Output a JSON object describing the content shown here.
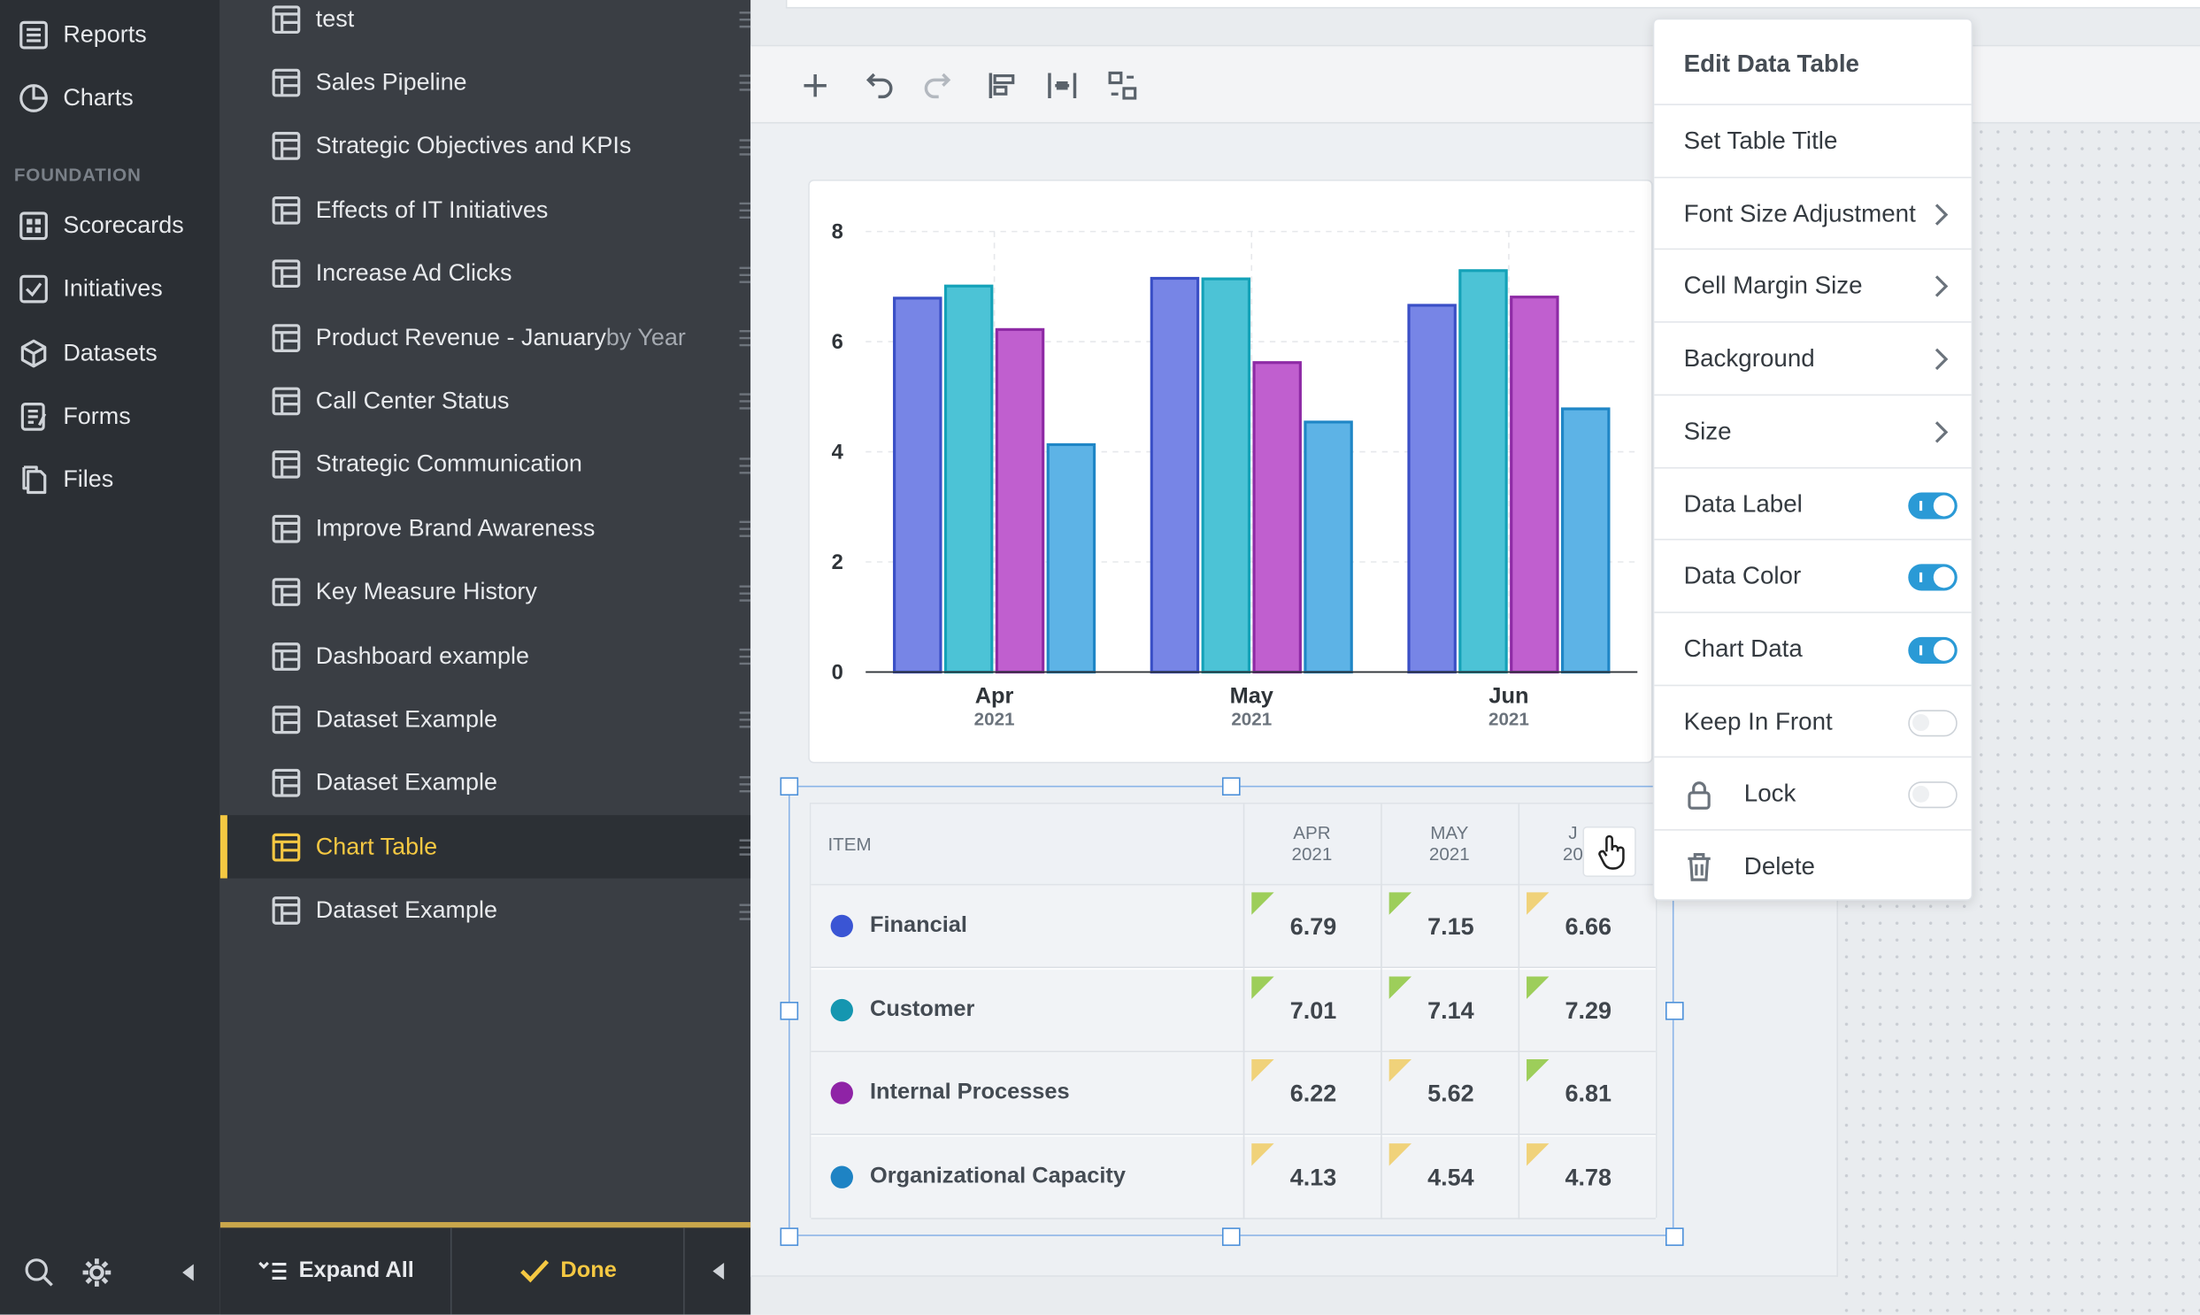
{
  "nav": {
    "items": [
      {
        "label": "Reports",
        "icon": "reports-icon"
      },
      {
        "label": "Charts",
        "icon": "charts-icon"
      }
    ],
    "section_label": "FOUNDATION",
    "foundation_items": [
      {
        "label": "Scorecards",
        "icon": "scorecards-icon"
      },
      {
        "label": "Initiatives",
        "icon": "initiatives-icon"
      },
      {
        "label": "Datasets",
        "icon": "datasets-icon"
      },
      {
        "label": "Forms",
        "icon": "forms-icon"
      },
      {
        "label": "Files",
        "icon": "files-icon"
      }
    ]
  },
  "list": {
    "items": [
      {
        "label": "test"
      },
      {
        "label": "Sales Pipeline"
      },
      {
        "label": "Strategic Objectives and KPIs"
      },
      {
        "label": "Effects of IT Initiatives"
      },
      {
        "label": "Increase Ad Clicks"
      },
      {
        "label": "Product Revenue - January",
        "suffix": " by Year"
      },
      {
        "label": "Call Center Status"
      },
      {
        "label": "Strategic Communication"
      },
      {
        "label": "Improve Brand Awareness"
      },
      {
        "label": "Key Measure History"
      },
      {
        "label": "Dashboard example"
      },
      {
        "label": "Dataset Example"
      },
      {
        "label": "Dataset Example"
      },
      {
        "label": "Chart Table",
        "active": true
      },
      {
        "label": "Dataset Example"
      }
    ],
    "expand_all_label": "Expand All",
    "done_label": "Done"
  },
  "chart_data": {
    "type": "bar",
    "categories": [
      "Apr",
      "May",
      "Jun"
    ],
    "category_sublabels": [
      "2021",
      "2021",
      "2021"
    ],
    "series": [
      {
        "name": "Financial",
        "values": [
          6.79,
          7.15,
          6.66
        ],
        "color": "#7785e6"
      },
      {
        "name": "Customer",
        "values": [
          7.01,
          7.14,
          7.29
        ],
        "color": "#4cc3d6"
      },
      {
        "name": "Internal Processes",
        "values": [
          6.22,
          5.62,
          6.81
        ],
        "color": "#c05fcf"
      },
      {
        "name": "Organizational Capacity",
        "values": [
          4.13,
          4.54,
          4.78
        ],
        "color": "#5db3e6"
      }
    ],
    "ylim": [
      0,
      8
    ],
    "yticks": [
      "0",
      "2",
      "4",
      "6",
      "8"
    ],
    "grid": true
  },
  "table": {
    "headers": {
      "item": "ITEM",
      "cols": [
        {
          "line1": "APR",
          "line2": "2021"
        },
        {
          "line1": "MAY",
          "line2": "2021"
        },
        {
          "line1": "J",
          "line2": "20"
        }
      ]
    },
    "rows": [
      {
        "name": "Financial",
        "dot": "#3a55d4",
        "values": [
          "6.79",
          "7.15",
          "6.66"
        ],
        "flags": [
          "#9dce5a",
          "#9dce5a",
          "#f0d27a"
        ]
      },
      {
        "name": "Customer",
        "dot": "#1596b0",
        "values": [
          "7.01",
          "7.14",
          "7.29"
        ],
        "flags": [
          "#9dce5a",
          "#9dce5a",
          "#9dce5a"
        ]
      },
      {
        "name": "Internal Processes",
        "dot": "#8f23a6",
        "values": [
          "6.22",
          "5.62",
          "6.81"
        ],
        "flags": [
          "#f0d27a",
          "#f0d27a",
          "#9dce5a"
        ]
      },
      {
        "name": "Organizational Capacity",
        "dot": "#1e83c4",
        "values": [
          "4.13",
          "4.54",
          "4.78"
        ],
        "flags": [
          "#f0d27a",
          "#f0d27a",
          "#f0d27a"
        ]
      }
    ]
  },
  "menu": {
    "title": "Edit Data Table",
    "items": [
      {
        "label": "Set Table Title"
      },
      {
        "label": "Font Size Adjustment",
        "submenu": true
      },
      {
        "label": "Cell Margin Size",
        "submenu": true
      },
      {
        "label": "Background",
        "submenu": true
      },
      {
        "label": "Size",
        "submenu": true
      },
      {
        "label": "Data Label",
        "toggle": true
      },
      {
        "label": "Data Color",
        "toggle": true
      },
      {
        "label": "Chart Data",
        "toggle": true
      },
      {
        "label": "Keep In Front",
        "toggle": false
      },
      {
        "label": "Lock",
        "toggle": false,
        "icon": "lock-icon"
      },
      {
        "label": "Delete",
        "icon": "trash-icon"
      }
    ]
  }
}
